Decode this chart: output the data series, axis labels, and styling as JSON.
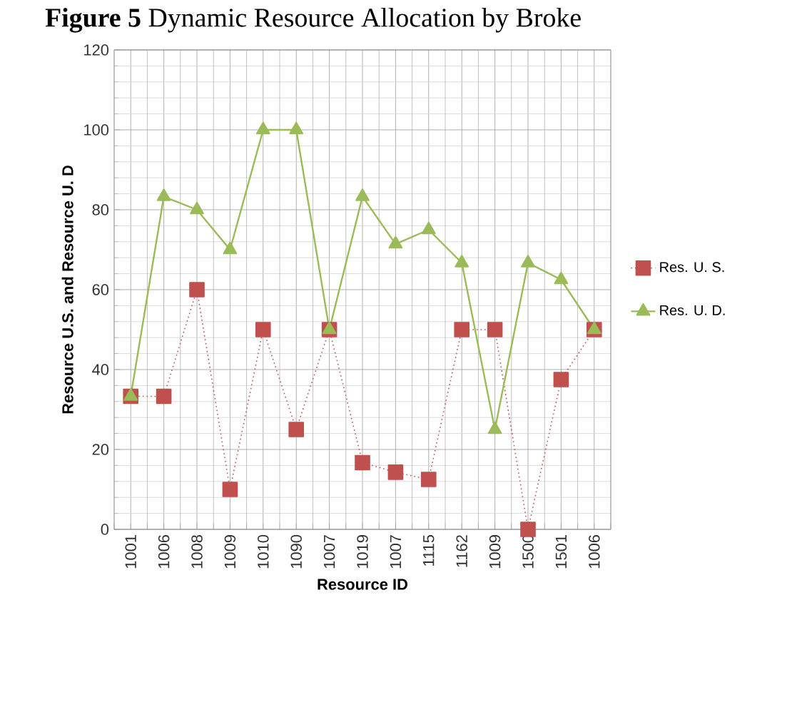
{
  "chart_data": {
    "type": "line",
    "title": "**Figure 5** Dynamic Resource Allocation by Broke",
    "xlabel": "Resource ID",
    "ylabel": "Resource U.S. and Resource U. D",
    "categories": [
      "1001",
      "1006",
      "1008",
      "1009",
      "1010",
      "1090",
      "1007",
      "1019",
      "1007",
      "1115",
      "1162",
      "1009",
      "1500",
      "1501",
      "1006"
    ],
    "series": [
      {
        "name": "Res. U. S.",
        "color": "#c0504d",
        "marker": "square",
        "line_style": "dotted",
        "values": [
          33.3,
          33.3,
          60,
          10,
          50,
          25,
          50,
          16.7,
          14.3,
          12.5,
          50,
          50,
          0,
          37.5,
          50
        ]
      },
      {
        "name": "Res. U. D.",
        "color": "#9bbb59",
        "marker": "triangle",
        "line_style": "solid",
        "values": [
          33.3,
          83.3,
          80,
          70,
          100,
          100,
          50,
          83.3,
          71.4,
          75,
          66.7,
          25,
          66.7,
          62.5,
          50
        ]
      }
    ],
    "ylim": [
      0,
      120
    ],
    "yticks": [
      0,
      20,
      40,
      60,
      80,
      100,
      120
    ],
    "grid": true,
    "legend": "right"
  }
}
